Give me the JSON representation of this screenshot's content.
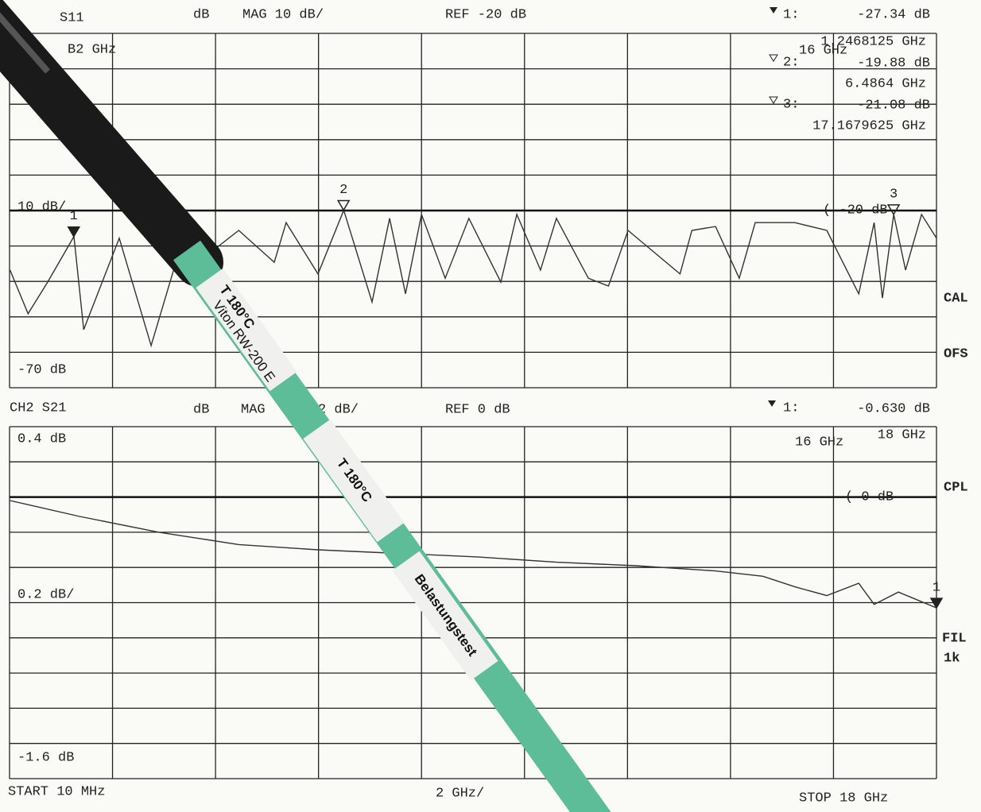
{
  "chart_data": [
    {
      "type": "line",
      "channel": "S11",
      "format": "dB",
      "scale": "MAG 10 dB/",
      "reference": "REF -20 dB",
      "ref_level": -20,
      "scale_label": "10 dB/",
      "bottom_label": "-70 dB",
      "ref_marker": "( -20 dB",
      "span_note": "16 GHz",
      "partial_note": "B2 GHz",
      "side_labels": [
        "CAL",
        "OFS"
      ],
      "xlim": [
        0,
        18
      ],
      "xticks": [
        0,
        2,
        4,
        6,
        8,
        10,
        12,
        14,
        16,
        18
      ],
      "ylim": [
        -70,
        30
      ],
      "yticks": [
        -70,
        -60,
        -50,
        -40,
        -30,
        -20,
        -10,
        0,
        10,
        20,
        30
      ],
      "grid": true,
      "color": "#333333",
      "x": [
        0.01,
        0.36,
        0.74,
        1.25,
        1.44,
        2.13,
        2.75,
        3.37,
        3.86,
        4.45,
        5.14,
        5.37,
        5.99,
        6.49,
        7.04,
        7.38,
        7.69,
        8.0,
        8.46,
        8.92,
        9.54,
        9.85,
        10.31,
        10.62,
        11.24,
        11.63,
        12.01,
        13.02,
        13.25,
        13.71,
        14.17,
        14.48,
        15.25,
        15.87,
        16.49,
        16.79,
        16.95,
        17.17,
        17.4,
        17.71,
        18.0
      ],
      "values": [
        -36.8,
        -49.1,
        -40.2,
        -27.3,
        -53.6,
        -27.8,
        -58.1,
        -27.8,
        -32.3,
        -25.6,
        -34.6,
        -23.4,
        -37.9,
        -19.9,
        -45.8,
        -22.2,
        -43.5,
        -21.1,
        -39.1,
        -22.2,
        -40.2,
        -21.1,
        -36.8,
        -22.2,
        -39.1,
        -41.3,
        -25.6,
        -37.9,
        -25.6,
        -24.5,
        -39.1,
        -23.4,
        -23.4,
        -25.6,
        -43.5,
        -23.4,
        -44.7,
        -21.1,
        -36.8,
        -21.1,
        -27.8
      ],
      "markers": [
        {
          "label": "1",
          "readout": "1:",
          "x": 1.2468125,
          "x_label": "1.2468125 GHz",
          "y": -27.34,
          "y_label": "-27.34 dB"
        },
        {
          "label": "2",
          "readout": "2:",
          "x": 6.4864,
          "x_label": "6.4864 GHz",
          "y": -19.88,
          "y_label": "-19.88 dB"
        },
        {
          "label": "3",
          "readout": "3:",
          "x": 17.1679625,
          "x_label": "17.1679625 GHz",
          "y": -21.08,
          "y_label": "-21.08 dB"
        }
      ]
    },
    {
      "type": "line",
      "channel": "CH2 S21",
      "format": "dB",
      "scale": "MAG",
      "scale_rest": "2 dB/",
      "reference": "REF 0 dB",
      "ref_level": 0,
      "top_label": "0.4 dB",
      "scale_label": "0.2 dB/",
      "bottom_label": "-1.6 dB",
      "ref_marker": "( 0 dB",
      "span_note": "16 GHz",
      "side_labels": [
        "CPL",
        "FIL",
        "1k"
      ],
      "xlim": [
        0,
        18
      ],
      "xticks": [
        0,
        2,
        4,
        6,
        8,
        10,
        12,
        14,
        16,
        18
      ],
      "ylim": [
        -1.6,
        0.4
      ],
      "yticks": [
        -1.6,
        -1.4,
        -1.2,
        -1.0,
        -0.8,
        -0.6,
        -0.4,
        -0.2,
        0,
        0.2,
        0.4
      ],
      "grid": true,
      "color": "#333333",
      "x": [
        0.01,
        1.36,
        2.9,
        4.45,
        5.99,
        7.53,
        9.08,
        10.62,
        12.16,
        13.71,
        14.63,
        15.25,
        15.87,
        16.49,
        16.79,
        17.26,
        18.0
      ],
      "values": [
        -0.02,
        -0.11,
        -0.2,
        -0.27,
        -0.3,
        -0.32,
        -0.34,
        -0.37,
        -0.39,
        -0.42,
        -0.45,
        -0.51,
        -0.56,
        -0.49,
        -0.61,
        -0.54,
        -0.63
      ],
      "markers": [
        {
          "label": "1",
          "readout": "1:",
          "x": 18,
          "x_label": "18 GHz",
          "y": -0.63,
          "y_label": "-0.630 dB"
        }
      ]
    }
  ],
  "footer": {
    "start": "START 10 MHz",
    "scale": "2 GHz/",
    "stop": "STOP 18 GHz"
  },
  "cable": {
    "label_1": "T 180°C",
    "label_2": "Viton RW-200 E",
    "label_3": "T 180°C",
    "label_4": "Belastungstest"
  }
}
